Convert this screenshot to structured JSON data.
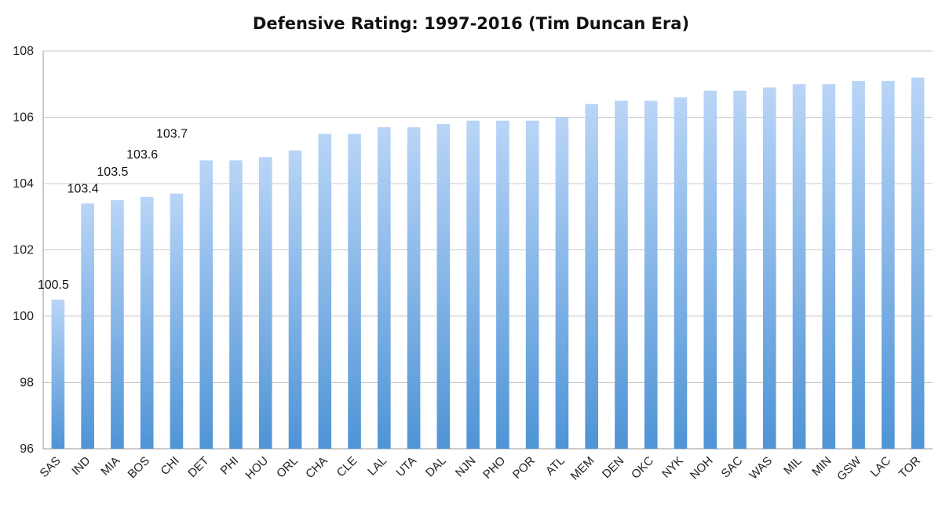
{
  "chart_data": {
    "type": "bar",
    "title": "Defensive Rating: 1997-2016 (Tim Duncan Era)",
    "xlabel": "",
    "ylabel": "",
    "ylim": [
      96,
      108
    ],
    "yticks": [
      96,
      98,
      100,
      102,
      104,
      106,
      108
    ],
    "grid": true,
    "legend": "none",
    "bar_color_top": "#b9d5f7",
    "bar_color_bottom": "#4f94d6",
    "categories": [
      "SAS",
      "IND",
      "MIA",
      "BOS",
      "CHI",
      "DET",
      "PHI",
      "HOU",
      "ORL",
      "CHA",
      "CLE",
      "LAL",
      "UTA",
      "DAL",
      "NJN",
      "PHO",
      "POR",
      "ATL",
      "MEM",
      "DEN",
      "OKC",
      "NYK",
      "NOH",
      "SAC",
      "WAS",
      "MIL",
      "MIN",
      "GSW",
      "LAC",
      "TOR"
    ],
    "values": [
      100.5,
      103.4,
      103.5,
      103.6,
      103.7,
      104.7,
      104.7,
      104.8,
      105.0,
      105.5,
      105.5,
      105.7,
      105.7,
      105.8,
      105.9,
      105.9,
      105.9,
      106.0,
      106.4,
      106.5,
      106.5,
      106.6,
      106.8,
      106.8,
      106.9,
      107.0,
      107.0,
      107.1,
      107.1,
      107.2
    ],
    "data_labels": [
      {
        "category": "SAS",
        "text": "100.5"
      },
      {
        "category": "IND",
        "text": "103.4"
      },
      {
        "category": "MIA",
        "text": "103.5"
      },
      {
        "category": "BOS",
        "text": "103.6"
      },
      {
        "category": "CHI",
        "text": "103.7"
      }
    ]
  }
}
